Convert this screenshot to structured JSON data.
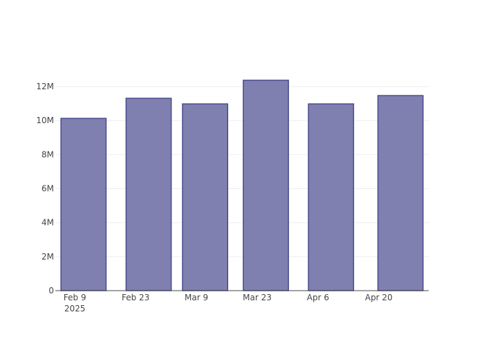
{
  "chart_data": {
    "type": "bar",
    "x": [
      "2025-02-11",
      "2025-02-26",
      "2025-03-11",
      "2025-03-25",
      "2025-04-09",
      "2025-04-25"
    ],
    "values": [
      10130000,
      11310000,
      10980000,
      12370000,
      10980000,
      11470000
    ],
    "color": "#7f7fb0",
    "edge_color": "#4a4a8c",
    "xlim": [
      "2025-02-04T12:00",
      "2025-05-01T12:00"
    ],
    "xticks": [
      {
        "value": "2025-02-09",
        "label": "Feb 9",
        "sublabel": "2025"
      },
      {
        "value": "2025-02-23",
        "label": "Feb 23"
      },
      {
        "value": "2025-03-09",
        "label": "Mar 9"
      },
      {
        "value": "2025-03-23",
        "label": "Mar 23"
      },
      {
        "value": "2025-04-06",
        "label": "Apr 6"
      },
      {
        "value": "2025-04-20",
        "label": "Apr 20"
      }
    ],
    "ylim": [
      0,
      13020000
    ],
    "yticks": [
      0,
      {
        "value": 2000000,
        "label": "2M"
      },
      {
        "value": 4000000,
        "label": "4M"
      },
      {
        "value": 6000000,
        "label": "6M"
      },
      {
        "value": 8000000,
        "label": "8M"
      },
      {
        "value": 10000000,
        "label": "10M"
      },
      {
        "value": 12000000,
        "label": "12M"
      }
    ],
    "grid": true
  }
}
